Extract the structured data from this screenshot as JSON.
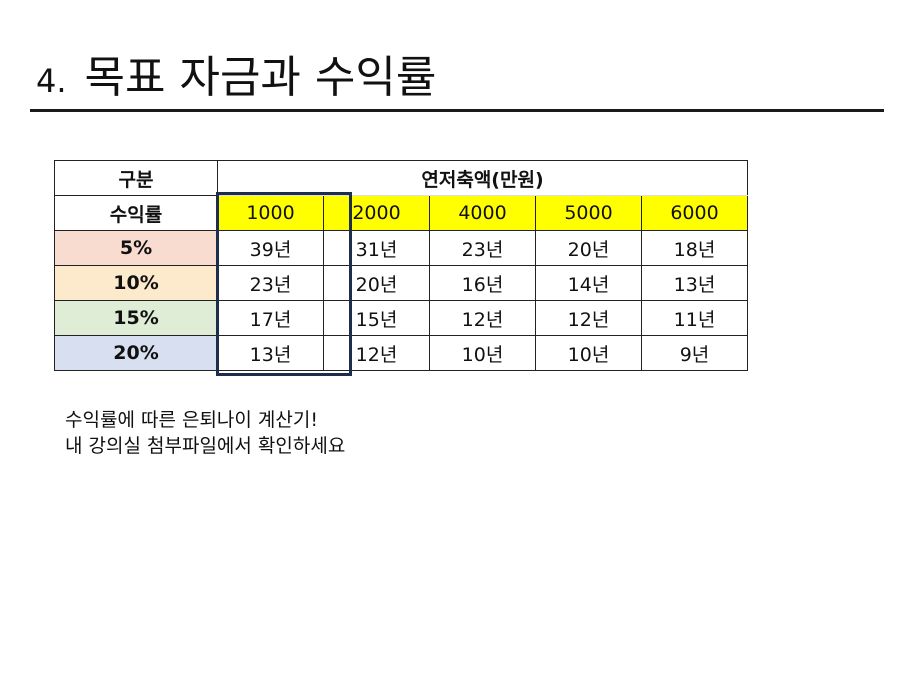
{
  "slide": {
    "title_number": "4.",
    "title_text": "목표 자금과 수익률"
  },
  "table": {
    "corner_top": "구분",
    "corner_bottom": "수익률",
    "group_header": "연저축액(만원)",
    "columns": [
      "1000",
      "2000",
      "4000",
      "5000",
      "6000"
    ],
    "header_color": "#ffff00",
    "rows": [
      {
        "rate": "5%",
        "color": "#f8dcd0",
        "values": [
          "39년",
          "31년",
          "23년",
          "20년",
          "18년"
        ]
      },
      {
        "rate": "10%",
        "color": "#fde9cc",
        "values": [
          "23년",
          "20년",
          "16년",
          "14년",
          "13년"
        ]
      },
      {
        "rate": "15%",
        "color": "#dfedd6",
        "values": [
          "17년",
          "15년",
          "12년",
          "12년",
          "11년"
        ]
      },
      {
        "rate": "20%",
        "color": "#d7dff0",
        "values": [
          "13년",
          "12년",
          "10년",
          "10년",
          "9년"
        ]
      }
    ],
    "highlight_color": "#1c2e4a"
  },
  "note": {
    "line1": "수익률에 따른 은퇴나이 계산기!",
    "line2": "내 강의실 첨부파일에서 확인하세요"
  }
}
